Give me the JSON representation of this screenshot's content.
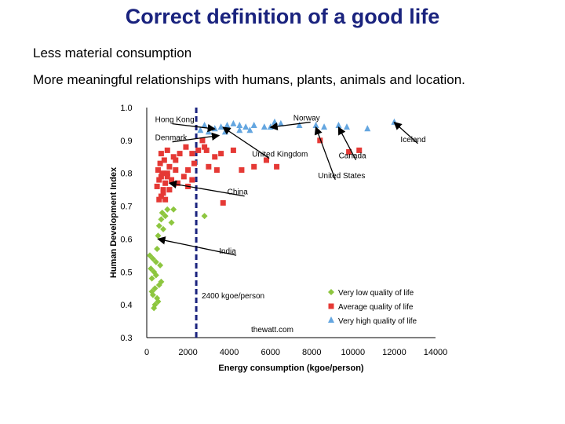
{
  "slide": {
    "title": "Correct definition of a good life",
    "bullets": [
      "Less material consumption",
      "More meaningful relationships with humans, plants, animals and location."
    ]
  },
  "chart_data": {
    "type": "scatter",
    "xlabel": "Energy consumption (kgoe/person)",
    "ylabel": "Human Development Index",
    "xlim": [
      0,
      14000
    ],
    "ylim": [
      0.3,
      1.0
    ],
    "xticks": [
      0,
      2000,
      4000,
      6000,
      8000,
      10000,
      12000,
      14000
    ],
    "xtick_labels": [
      "0",
      "2000",
      "4000",
      "6000",
      "8000",
      "10000",
      "12000",
      "14000"
    ],
    "yticks": [
      0.3,
      0.4,
      0.5,
      0.6,
      0.7,
      0.8,
      0.9,
      1.0
    ],
    "ytick_labels": [
      "0.3",
      "0.4",
      "0.5",
      "0.6",
      "0.7",
      "0.8",
      "0.9",
      "1.0"
    ],
    "threshold": {
      "x": 2400,
      "label": "2400 kgoe/person"
    },
    "source": "thewatt.com",
    "colors": {
      "very_low": "#8dc63f",
      "average": "#e53935",
      "very_high": "#64a6e0",
      "threshold": "#1a237e",
      "title": "#1a237e"
    },
    "series": [
      {
        "name": "Very low quality of life",
        "marker": "diamond",
        "points": [
          [
            150,
            0.55
          ],
          [
            200,
            0.51
          ],
          [
            250,
            0.48
          ],
          [
            300,
            0.54
          ],
          [
            350,
            0.5
          ],
          [
            400,
            0.45
          ],
          [
            450,
            0.53
          ],
          [
            300,
            0.43
          ],
          [
            500,
            0.42
          ],
          [
            400,
            0.4
          ],
          [
            350,
            0.39
          ],
          [
            250,
            0.44
          ],
          [
            600,
            0.46
          ],
          [
            700,
            0.47
          ],
          [
            650,
            0.52
          ],
          [
            500,
            0.57
          ],
          [
            550,
            0.61
          ],
          [
            600,
            0.64
          ],
          [
            700,
            0.66
          ],
          [
            750,
            0.68
          ],
          [
            900,
            0.67
          ],
          [
            1000,
            0.69
          ],
          [
            1200,
            0.65
          ],
          [
            1300,
            0.69
          ],
          [
            2800,
            0.67
          ],
          [
            450,
            0.49
          ],
          [
            550,
            0.41
          ],
          [
            800,
            0.63
          ]
        ]
      },
      {
        "name": "Average quality of life",
        "marker": "square",
        "points": [
          [
            500,
            0.76
          ],
          [
            600,
            0.78
          ],
          [
            700,
            0.79
          ],
          [
            800,
            0.75
          ],
          [
            900,
            0.77
          ],
          [
            550,
            0.81
          ],
          [
            650,
            0.83
          ],
          [
            750,
            0.8
          ],
          [
            850,
            0.84
          ],
          [
            1000,
            0.8
          ],
          [
            1100,
            0.82
          ],
          [
            1200,
            0.78
          ],
          [
            600,
            0.72
          ],
          [
            700,
            0.73
          ],
          [
            800,
            0.74
          ],
          [
            900,
            0.72
          ],
          [
            1500,
            0.77
          ],
          [
            1800,
            0.79
          ],
          [
            2000,
            0.76
          ],
          [
            2200,
            0.78
          ],
          [
            1300,
            0.85
          ],
          [
            1600,
            0.86
          ],
          [
            1900,
            0.88
          ],
          [
            2200,
            0.86
          ],
          [
            2500,
            0.87
          ],
          [
            2800,
            0.88
          ],
          [
            3000,
            0.82
          ],
          [
            3300,
            0.85
          ],
          [
            3600,
            0.86
          ],
          [
            4200,
            0.87
          ],
          [
            4600,
            0.81
          ],
          [
            5200,
            0.82
          ],
          [
            5800,
            0.84
          ],
          [
            6300,
            0.82
          ],
          [
            9800,
            0.865
          ],
          [
            10300,
            0.87
          ],
          [
            1000,
            0.87
          ],
          [
            1400,
            0.84
          ],
          [
            2700,
            0.9
          ],
          [
            2900,
            0.87
          ],
          [
            3700,
            0.71
          ],
          [
            8400,
            0.9
          ],
          [
            2000,
            0.81
          ],
          [
            1100,
            0.75
          ],
          [
            1400,
            0.81
          ],
          [
            2300,
            0.83
          ],
          [
            700,
            0.86
          ],
          [
            1000,
            0.79
          ],
          [
            3400,
            0.81
          ]
        ]
      },
      {
        "name": "Very high quality of life",
        "marker": "triangle",
        "points": [
          [
            2600,
            0.93
          ],
          [
            3000,
            0.925
          ],
          [
            3300,
            0.935
          ],
          [
            3600,
            0.94
          ],
          [
            3900,
            0.945
          ],
          [
            4200,
            0.95
          ],
          [
            4500,
            0.945
          ],
          [
            4800,
            0.94
          ],
          [
            5200,
            0.945
          ],
          [
            5700,
            0.94
          ],
          [
            6200,
            0.955
          ],
          [
            6500,
            0.95
          ],
          [
            7400,
            0.945
          ],
          [
            8200,
            0.945
          ],
          [
            8600,
            0.94
          ],
          [
            9300,
            0.945
          ],
          [
            9700,
            0.94
          ],
          [
            10700,
            0.935
          ],
          [
            12000,
            0.955
          ],
          [
            6000,
            0.94
          ],
          [
            3800,
            0.925
          ],
          [
            4500,
            0.93
          ],
          [
            5000,
            0.93
          ],
          [
            2800,
            0.945
          ]
        ]
      }
    ],
    "annotations": [
      {
        "text": "Hong Kong",
        "x": 100,
        "y": 0.965,
        "tx": 3300,
        "ty": 0.935
      },
      {
        "text": "Denmark",
        "x": 100,
        "y": 0.91,
        "tx": 3500,
        "ty": 0.915
      },
      {
        "text": "United Kingdom",
        "x": 4800,
        "y": 0.86,
        "tx": 3700,
        "ty": 0.94
      },
      {
        "text": "Norway",
        "x": 6800,
        "y": 0.97,
        "tx": 6000,
        "ty": 0.94
      },
      {
        "text": "Canada",
        "x": 9000,
        "y": 0.855,
        "tx": 9300,
        "ty": 0.94
      },
      {
        "text": "United States",
        "x": 8000,
        "y": 0.795,
        "tx": 8200,
        "ty": 0.94
      },
      {
        "text": "Iceland",
        "x": 12000,
        "y": 0.905,
        "tx": 12000,
        "ty": 0.955
      },
      {
        "text": "China",
        "x": 3600,
        "y": 0.745,
        "tx": 1100,
        "ty": 0.77
      },
      {
        "text": "India",
        "x": 3200,
        "y": 0.565,
        "tx": 550,
        "ty": 0.6
      }
    ]
  }
}
